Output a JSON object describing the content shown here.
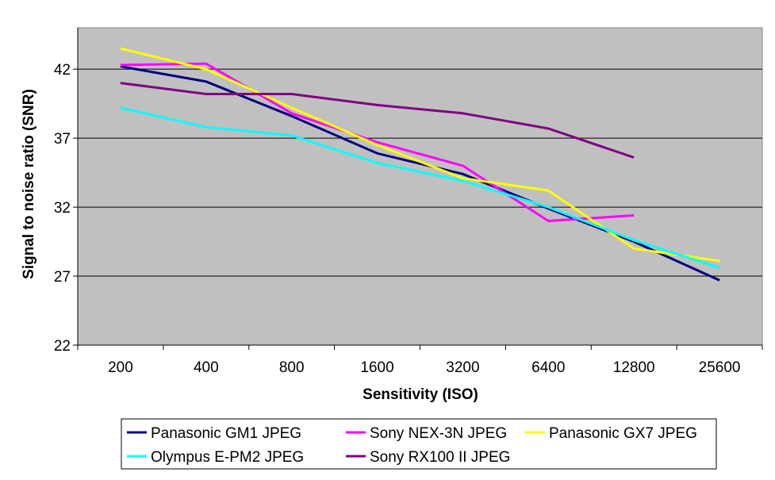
{
  "chart_data": {
    "type": "line",
    "title": "",
    "xlabel": "Sensitivity (ISO)",
    "ylabel": "Signal to noise ratio (SNR)",
    "categories": [
      "200",
      "400",
      "800",
      "1600",
      "3200",
      "6400",
      "12800",
      "25600"
    ],
    "ylim": [
      22,
      45
    ],
    "yticks": [
      22,
      27,
      32,
      37,
      42
    ],
    "grid": true,
    "legend_position": "bottom",
    "plot_background": "#c0c0c0",
    "series": [
      {
        "name": "Panasonic GM1 JPEG",
        "color": "#000080",
        "values": [
          42.2,
          41.1,
          38.6,
          35.9,
          34.4,
          31.9,
          29.5,
          26.7
        ]
      },
      {
        "name": "Sony NEX-3N JPEG",
        "color": "#ff00ff",
        "values": [
          42.3,
          42.4,
          38.8,
          36.7,
          35.0,
          31.0,
          31.4,
          null
        ]
      },
      {
        "name": "Panasonic GX7 JPEG",
        "color": "#ffff00",
        "values": [
          43.5,
          42.0,
          39.2,
          36.5,
          34.1,
          33.2,
          29.0,
          28.1
        ]
      },
      {
        "name": "Olympus E-PM2 JPEG",
        "color": "#00ffff",
        "values": [
          39.2,
          37.8,
          37.2,
          35.2,
          33.9,
          32.0,
          29.6,
          27.6
        ]
      },
      {
        "name": "Sony RX100 II JPEG",
        "color": "#800080",
        "values": [
          41.0,
          40.2,
          40.2,
          39.4,
          38.8,
          37.7,
          35.6,
          null
        ]
      }
    ]
  }
}
